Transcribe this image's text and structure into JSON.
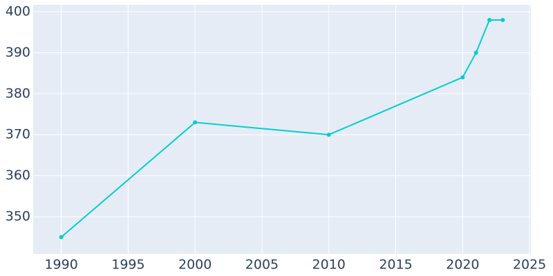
{
  "chart_data": {
    "type": "line",
    "x": [
      1990,
      2000,
      2010,
      2020,
      2021,
      2022,
      2023
    ],
    "series": [
      {
        "color": "#00ced1",
        "values": [
          345,
          373,
          370,
          384,
          390,
          398,
          398
        ]
      }
    ],
    "xlim": [
      1987.9,
      2025.1
    ],
    "xticks": [
      1990,
      1995,
      2000,
      2005,
      2010,
      2015,
      2020,
      2025
    ],
    "ylim": [
      340.9,
      401.7
    ],
    "yticks": [
      350,
      360,
      370,
      380,
      390,
      400
    ],
    "grid": true
  }
}
